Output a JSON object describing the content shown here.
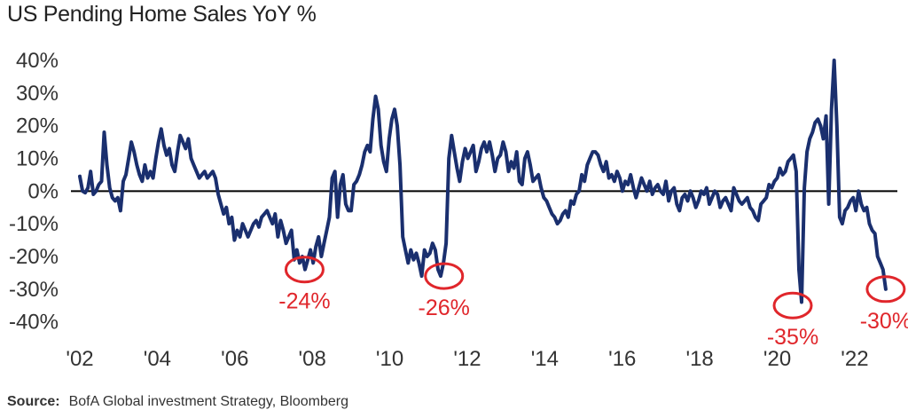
{
  "chart_data": {
    "type": "line",
    "title": "US Pending Home Sales YoY %",
    "source_label": "Source:",
    "source_text": "BofA Global investment Strategy, Bloomberg",
    "x_start": 2002.0,
    "xlim": [
      2002.0,
      2023.1
    ],
    "ylim": [
      -42,
      40
    ],
    "yticks": [
      40,
      30,
      20,
      10,
      0,
      -10,
      -20,
      -30,
      -40
    ],
    "ytick_labels": [
      "40%",
      "30%",
      "20%",
      "10%",
      "0%",
      "-10%",
      "-20%",
      "-30%",
      "-40%"
    ],
    "xticks": [
      2002,
      2004,
      2006,
      2008,
      2010,
      2012,
      2014,
      2016,
      2018,
      2020,
      2022
    ],
    "xtick_labels": [
      "'02",
      "'04",
      "'06",
      "'08",
      "'10",
      "'12",
      "'14",
      "'16",
      "'18",
      "'20",
      "'22"
    ],
    "zero_line": true,
    "grid": false,
    "line_color": "#1a2f6e",
    "annotation_color": "#e0262b",
    "annotations": [
      {
        "x": 2007.8,
        "y": -24,
        "label": "-24%"
      },
      {
        "x": 2011.4,
        "y": -26,
        "label": "-26%"
      },
      {
        "x": 2020.4,
        "y": -35,
        "label": "-35%"
      },
      {
        "x": 2022.8,
        "y": -30,
        "label": "-30%"
      }
    ],
    "series": [
      {
        "values": [
          4.5,
          0,
          -0.5,
          1,
          6,
          -1,
          0,
          2,
          3,
          18,
          8,
          1,
          -2,
          -3,
          -2,
          -6,
          3,
          5,
          10,
          15,
          12,
          8,
          5,
          3,
          8,
          4,
          6,
          4,
          10,
          15,
          19,
          14,
          11,
          13,
          8,
          6,
          12,
          17,
          15,
          13,
          16,
          10,
          8,
          6,
          4,
          5,
          6,
          4,
          5,
          6,
          4,
          -1,
          -4,
          -7,
          -5,
          -10,
          -8,
          -15,
          -12,
          -14,
          -10,
          -12,
          -14,
          -12,
          -10,
          -9,
          -11,
          -8,
          -7,
          -6,
          -8,
          -10,
          -7,
          -14,
          -9,
          -12,
          -16,
          -14,
          -12,
          -21,
          -18,
          -22,
          -20,
          -24,
          -21,
          -18,
          -22,
          -17,
          -14,
          -20,
          -16,
          -12,
          -8,
          4,
          6,
          -8,
          2,
          5,
          -4,
          -6,
          -6,
          2,
          3,
          5,
          8,
          12,
          14,
          12,
          22,
          29,
          25,
          14,
          9,
          6,
          16,
          22,
          25,
          20,
          8,
          -14,
          -18,
          -22,
          -18,
          -21,
          -19,
          -22,
          -26,
          -18,
          -20,
          -19,
          -16,
          -18,
          -24,
          -26,
          -22,
          -16,
          10,
          17,
          12,
          7,
          3,
          9,
          13,
          10,
          12,
          14,
          6,
          9,
          13,
          15,
          12,
          15,
          11,
          6,
          10,
          11,
          15,
          12,
          6,
          9,
          7,
          12,
          3,
          2,
          10,
          12,
          8,
          3,
          4,
          5,
          1,
          -2,
          -3,
          -5,
          -7,
          -8,
          -10,
          -9,
          -7,
          -6,
          -8,
          -3,
          -4,
          -1,
          0,
          5,
          3,
          8,
          10,
          12,
          12,
          11,
          8,
          6,
          9,
          4,
          5,
          3,
          6,
          4,
          0,
          3,
          2,
          5,
          1,
          -2,
          1,
          4,
          2,
          0,
          3,
          -1,
          1,
          2,
          0,
          -1,
          3,
          -3,
          0,
          1,
          -4,
          -6,
          -2,
          -1,
          -3,
          0,
          -2,
          -5,
          -3,
          0,
          -1,
          1,
          -4,
          -2,
          0,
          -1,
          -5,
          -3,
          -2,
          -4,
          -6,
          1,
          -1,
          -3,
          -4,
          -3,
          -2,
          -5,
          -6,
          -8,
          -9,
          -4,
          -3,
          -2,
          2,
          1,
          3,
          4,
          7,
          5,
          6,
          9,
          10,
          11,
          6,
          -24,
          -34,
          1,
          12,
          16,
          18,
          21,
          22,
          20,
          16,
          23,
          -4,
          25,
          40,
          20,
          -8,
          -10,
          -6,
          -5,
          -3,
          -2,
          -6,
          0,
          -4,
          -6,
          -5,
          -10,
          -12,
          -13,
          -20,
          -22,
          -24,
          -30
        ]
      }
    ]
  }
}
